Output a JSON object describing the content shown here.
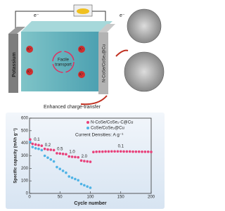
{
  "schematic": {
    "electron_left": "e⁻",
    "electron_right": "e⁻",
    "potassium": "Potassium",
    "k_ion": "K⁺",
    "transport": [
      "Facile",
      "transport"
    ],
    "electrode": "N-CoSe/CoSe₂@Cu",
    "caption": "Enhanced charge-transfer"
  },
  "chart_data": {
    "type": "line",
    "x_label": "Cycle number",
    "y_label": "Specific capacity (mAh g⁻¹)",
    "annotation": "Current Densities: A g⁻¹",
    "rate_labels": [
      "0.1",
      "0.2",
      "0.5",
      "1.0",
      "2.0",
      "0.1"
    ],
    "x": [
      1,
      5,
      10,
      15,
      20,
      25,
      30,
      35,
      40,
      45,
      50,
      55,
      60,
      65,
      70,
      75,
      80,
      85,
      90,
      95,
      100,
      105,
      110,
      115,
      120,
      125,
      130,
      135,
      140,
      145,
      150,
      155,
      160,
      165,
      170,
      175,
      180,
      185,
      190,
      195,
      200
    ],
    "series": [
      {
        "name": "N-CoSe/CoSe₂-C@Cu",
        "color": "#e8407a",
        "values": [
          430,
          395,
          390,
          385,
          380,
          355,
          350,
          348,
          345,
          320,
          318,
          315,
          312,
          295,
          292,
          290,
          288,
          262,
          258,
          255,
          252,
          330,
          332,
          333,
          333,
          334,
          334,
          335,
          335,
          335,
          335,
          334,
          334,
          334,
          333,
          333,
          333,
          332,
          332,
          332,
          331
        ]
      },
      {
        "name": "CoSe/CoSe₂@Cu",
        "color": "#4fb3e6",
        "values": [
          410,
          370,
          360,
          355,
          345,
          300,
          285,
          270,
          255,
          210,
          195,
          180,
          165,
          135,
          125,
          115,
          105,
          75,
          65,
          55,
          45,
          null,
          null,
          null,
          null,
          null,
          null,
          null,
          null,
          null,
          null,
          null,
          null,
          null,
          null,
          null,
          null,
          null,
          null,
          null,
          null
        ]
      }
    ],
    "xlim": [
      0,
      200
    ],
    "xticks": [
      0,
      50,
      100,
      150,
      200
    ],
    "ylim": [
      0,
      600
    ],
    "yticks": [
      0,
      100,
      200,
      300,
      400,
      500,
      600
    ],
    "legend": "upper right"
  }
}
